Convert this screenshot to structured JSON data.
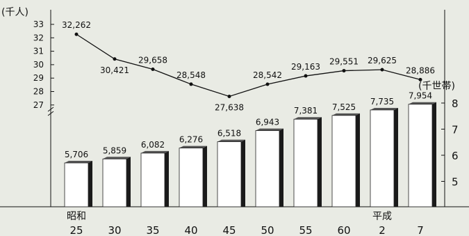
{
  "chart_data": {
    "type": "bar+line",
    "title": "",
    "era_labels": [
      "昭和",
      "平成"
    ],
    "categories": [
      "25",
      "30",
      "35",
      "40",
      "45",
      "50",
      "55",
      "60",
      "2",
      "7"
    ],
    "left_axis": {
      "unit": "(千人)",
      "ticks": [
        27,
        28,
        29,
        30,
        31,
        32,
        33
      ],
      "range": [
        26,
        33.5
      ]
    },
    "right_axis": {
      "unit": "(千世帯)",
      "ticks": [
        5,
        6,
        7,
        8
      ],
      "range": [
        4,
        8.5
      ]
    },
    "line_series": {
      "values": [
        32262,
        30421,
        29658,
        28548,
        27638,
        28542,
        29163,
        29551,
        29625,
        28886
      ],
      "labels": [
        "32,262",
        "30,421",
        "29,658",
        "28,548",
        "27,638",
        "28,542",
        "29,163",
        "29,551",
        "29,625",
        "28,886"
      ]
    },
    "bar_series": {
      "values": [
        5706,
        5859,
        6082,
        6276,
        6518,
        6943,
        7381,
        7525,
        7735,
        7954
      ],
      "labels": [
        "5,706",
        "5,859",
        "6,082",
        "6,276",
        "6,518",
        "6,943",
        "7,381",
        "7,525",
        "7,735",
        "7,954"
      ]
    },
    "colors": {
      "bar_fill": "#ffffff",
      "bar_side": "#1a1a1a",
      "line": "#111111",
      "background": "#e9ebe4"
    }
  }
}
